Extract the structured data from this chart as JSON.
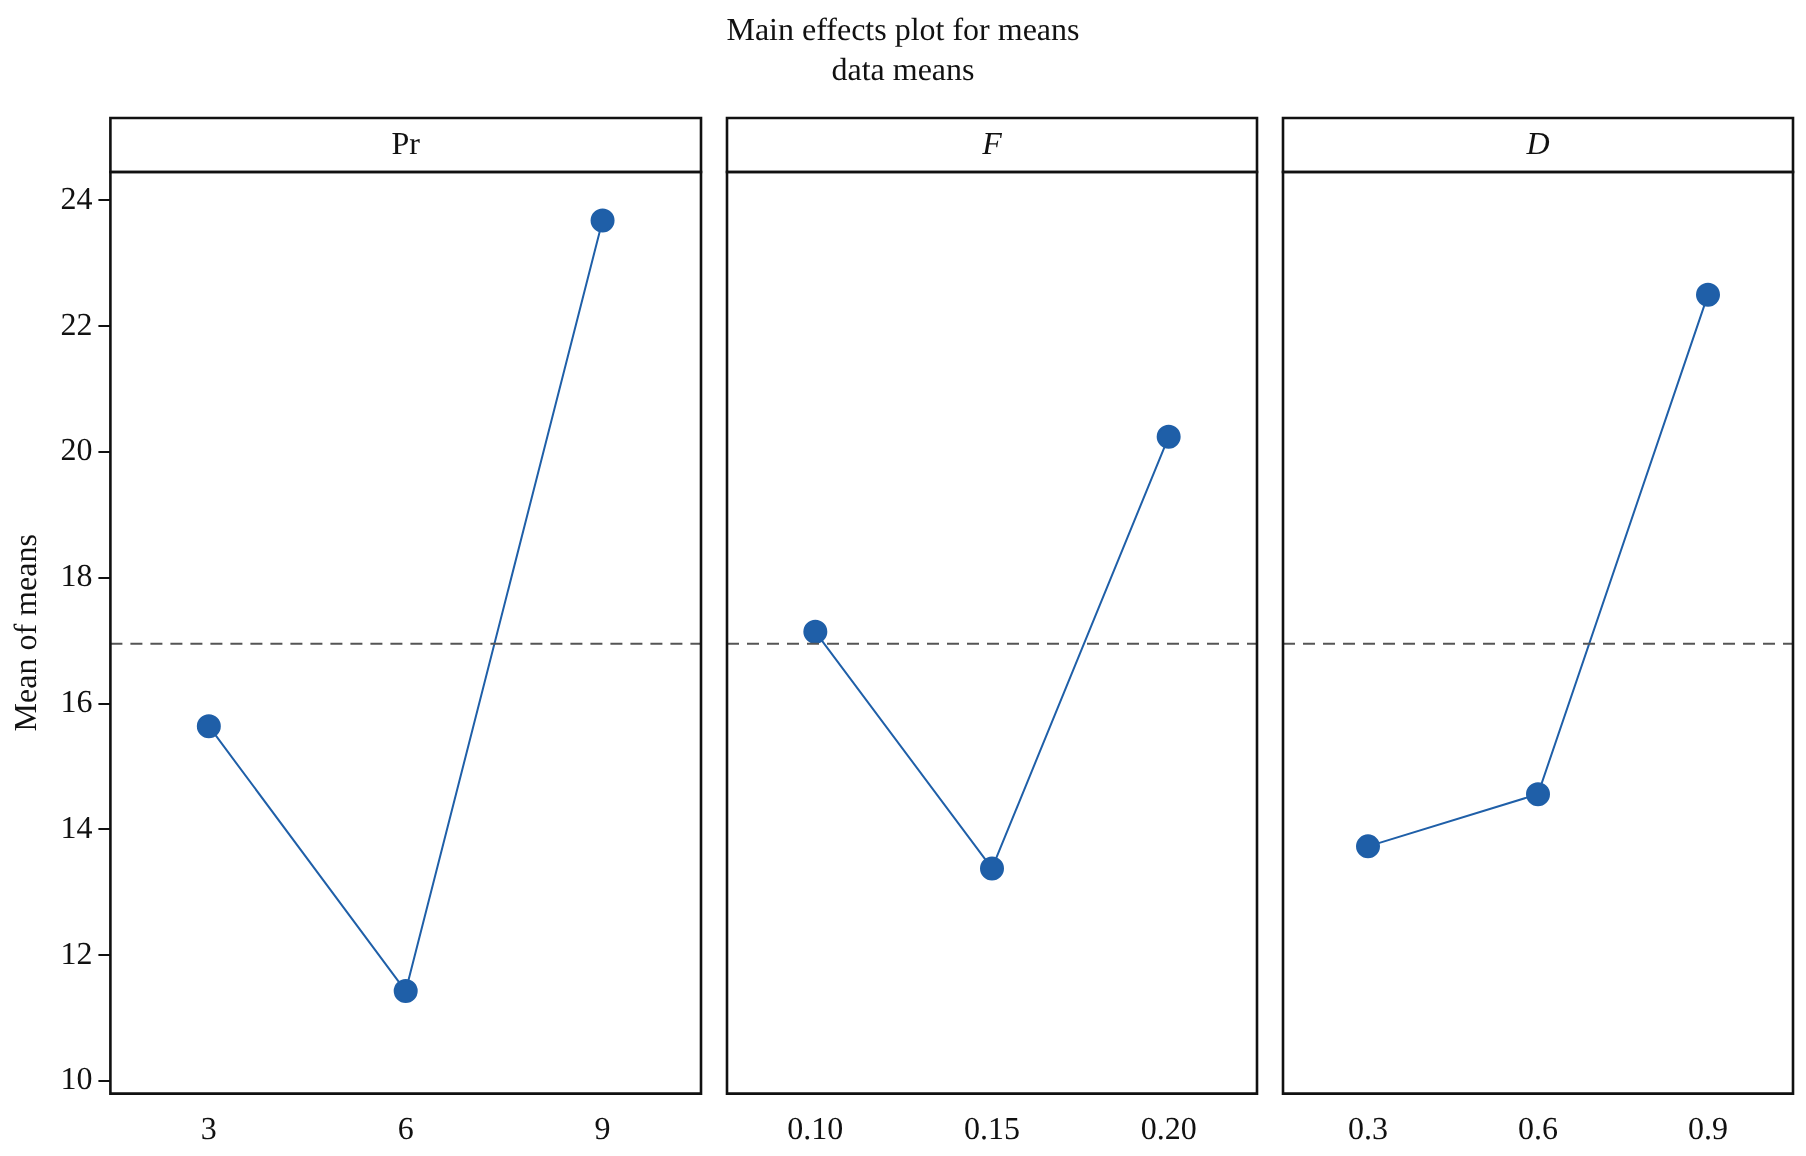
{
  "chart_data": [
    {
      "type": "other",
      "title": "Main effects plot for means",
      "subtitle": "data means"
    },
    {
      "type": "line",
      "title": "Pr",
      "ylabel": "Mean of means",
      "categories": [
        "3",
        "6",
        "9"
      ],
      "series": [
        {
          "color": "#1f5fa8",
          "values": [
            15.64,
            11.43,
            23.68
          ]
        }
      ],
      "ylim": [
        9.8,
        24.45
      ],
      "yticks": [
        10,
        12,
        14,
        16,
        18,
        20,
        22,
        24
      ],
      "marker": "circle",
      "line_style": "solid",
      "grid": false,
      "legend": false,
      "ref_lines": [
        {
          "axis": "y",
          "value": 16.95,
          "color": "#555555",
          "line_style": "dashed"
        }
      ]
    },
    {
      "type": "line",
      "title": "F",
      "categories": [
        "0.10",
        "0.15",
        "0.20"
      ],
      "series": [
        {
          "color": "#1f5fa8",
          "values": [
            17.14,
            13.38,
            20.24
          ]
        }
      ],
      "ylim": [
        9.8,
        24.45
      ],
      "tick_labels": "x",
      "marker": "circle",
      "line_style": "solid",
      "grid": false,
      "legend": false,
      "ref_lines": [
        {
          "axis": "y",
          "value": 16.95,
          "color": "#555555",
          "line_style": "dashed"
        }
      ]
    },
    {
      "type": "line",
      "title": "D",
      "categories": [
        "0.3",
        "0.6",
        "0.9"
      ],
      "series": [
        {
          "color": "#1f5fa8",
          "values": [
            13.73,
            14.56,
            22.5
          ]
        }
      ],
      "ylim": [
        9.8,
        24.45
      ],
      "tick_labels": "x",
      "marker": "circle",
      "line_style": "solid",
      "grid": false,
      "legend": false,
      "ref_lines": [
        {
          "axis": "y",
          "value": 16.95,
          "color": "#555555",
          "line_style": "dashed"
        }
      ]
    }
  ]
}
